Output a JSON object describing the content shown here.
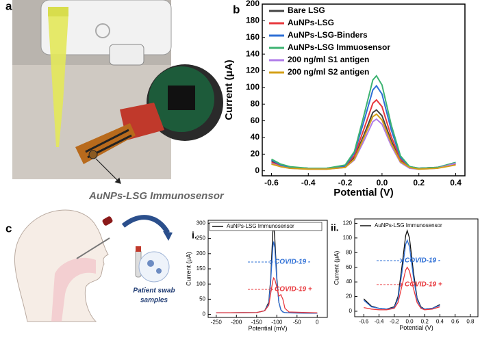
{
  "photo": {
    "label": "a",
    "caption": "AuNPs-LSG Immunosensor"
  },
  "illustration": {
    "label": "c",
    "caption": [
      "Patient swab",
      "samples"
    ]
  },
  "chart_data": [
    {
      "type": "line",
      "panel": "b",
      "xlabel": "Potential (V)",
      "ylabel": "Current (μA)",
      "x": [
        -0.6,
        -0.55,
        -0.5,
        -0.4,
        -0.3,
        -0.2,
        -0.15,
        -0.1,
        -0.05,
        -0.03,
        0,
        0.05,
        0.1,
        0.15,
        0.2,
        0.3,
        0.4
      ],
      "series": [
        {
          "name": "Bare LSG",
          "color": "#444444",
          "values": [
            12,
            6,
            4,
            3,
            3,
            5,
            16,
            42,
            70,
            73,
            66,
            36,
            12,
            4,
            3,
            4,
            9
          ]
        },
        {
          "name": "AuNPs-LSG",
          "color": "#e8383d",
          "values": [
            10,
            6,
            4,
            3,
            3,
            6,
            18,
            49,
            81,
            85,
            77,
            41,
            14,
            5,
            3,
            4,
            8
          ]
        },
        {
          "name": "AuNPs-LSG-Binders",
          "color": "#2e6fd6",
          "values": [
            13,
            7,
            4,
            3,
            3,
            6,
            21,
            58,
            97,
            102,
            92,
            49,
            16,
            5,
            3,
            4,
            10
          ]
        },
        {
          "name": "AuNPs-LSG Immuosensor",
          "color": "#3cb371",
          "values": [
            14,
            8,
            5,
            3,
            3,
            7,
            23,
            65,
            109,
            114,
            103,
            55,
            18,
            5,
            3,
            4,
            10
          ]
        },
        {
          "name": "200 ng/ml S1 antigen",
          "color": "#b07ce8",
          "values": [
            9,
            5,
            3,
            2,
            2,
            4,
            13,
            35,
            59,
            62,
            56,
            30,
            10,
            3,
            2,
            3,
            9
          ]
        },
        {
          "name": "200 ng/ml S2 antigen",
          "color": "#d4a017",
          "values": [
            8,
            5,
            3,
            2,
            2,
            4,
            14,
            39,
            65,
            68,
            61,
            33,
            11,
            4,
            2,
            3,
            7
          ]
        }
      ],
      "xlim": [
        -0.65,
        0.45
      ],
      "xticks": [
        -0.6,
        -0.4,
        -0.2,
        {
          "value": 0,
          "label": "0.0"
        },
        0.2,
        0.4
      ],
      "ylim": [
        -6,
        200
      ],
      "yticks": [
        0,
        20,
        40,
        60,
        80,
        100,
        120,
        140,
        160,
        180,
        200
      ]
    },
    {
      "type": "line",
      "panel": "i.",
      "xlabel": "Potential (mV)",
      "ylabel": "Current (μA)",
      "x": [
        -250,
        -150,
        -130,
        -120,
        -115,
        -110,
        -108,
        -105,
        -100,
        -95,
        -90,
        -85,
        -80,
        -70,
        0
      ],
      "series": [
        {
          "name": "AuNPs-LSG Immunosensor",
          "color": "#111111",
          "values": [
            5,
            6,
            12,
            40,
            120,
            270,
            300,
            250,
            120,
            40,
            15,
            8,
            6,
            5,
            4
          ]
        },
        {
          "color": "#2e6fd6",
          "values": [
            5,
            6,
            12,
            35,
            110,
            220,
            240,
            220,
            110,
            40,
            15,
            8,
            6,
            5,
            4
          ]
        },
        {
          "color": "#e8383d",
          "values": [
            5,
            6,
            12,
            30,
            70,
            110,
            120,
            115,
            90,
            60,
            65,
            50,
            20,
            8,
            5
          ]
        }
      ],
      "annotations": [
        {
          "text": "COVID-19 -",
          "color": "#2e6fd6"
        },
        {
          "text": "COVID-19 +",
          "color": "#e8383d"
        }
      ],
      "xlim": [
        -270,
        25
      ],
      "xticks": [
        -250,
        -200,
        -150,
        -100,
        -50,
        0
      ],
      "ylim": [
        -10,
        310
      ],
      "yticks": [
        0,
        50,
        100,
        150,
        200,
        250,
        300
      ]
    },
    {
      "type": "line",
      "panel": "ii.",
      "xlabel": "Potential (V)",
      "ylabel": "Current (μA)",
      "x": [
        -0.6,
        -0.5,
        -0.4,
        -0.3,
        -0.2,
        -0.15,
        -0.1,
        -0.05,
        -0.03,
        0,
        0.05,
        0.1,
        0.15,
        0.2,
        0.3,
        0.4
      ],
      "series": [
        {
          "name": "AuNPs-LSG Immunosensor",
          "color": "#111111",
          "values": [
            17,
            7,
            4,
            3,
            6,
            20,
            60,
            103,
            110,
            100,
            55,
            18,
            6,
            3,
            4,
            9
          ]
        },
        {
          "color": "#2e6fd6",
          "values": [
            15,
            6,
            4,
            3,
            5,
            17,
            52,
            91,
            97,
            88,
            48,
            16,
            5,
            3,
            4,
            8
          ]
        },
        {
          "color": "#e8383d",
          "values": [
            5,
            3,
            2,
            2,
            4,
            12,
            34,
            56,
            60,
            55,
            32,
            12,
            4,
            2,
            3,
            6
          ]
        }
      ],
      "annotations": [
        {
          "text": "COVID-19 -",
          "color": "#2e6fd6"
        },
        {
          "text": "COVID-19 +",
          "color": "#e8383d"
        }
      ],
      "xlim": [
        -0.72,
        0.9
      ],
      "xticks": [
        -0.6,
        -0.4,
        -0.2,
        {
          "value": 0,
          "label": "0.0"
        },
        0.2,
        0.4,
        0.6,
        0.8
      ],
      "ylim": [
        -7.5,
        126
      ],
      "yticks": [
        0,
        20,
        40,
        60,
        80,
        100,
        120
      ]
    }
  ]
}
